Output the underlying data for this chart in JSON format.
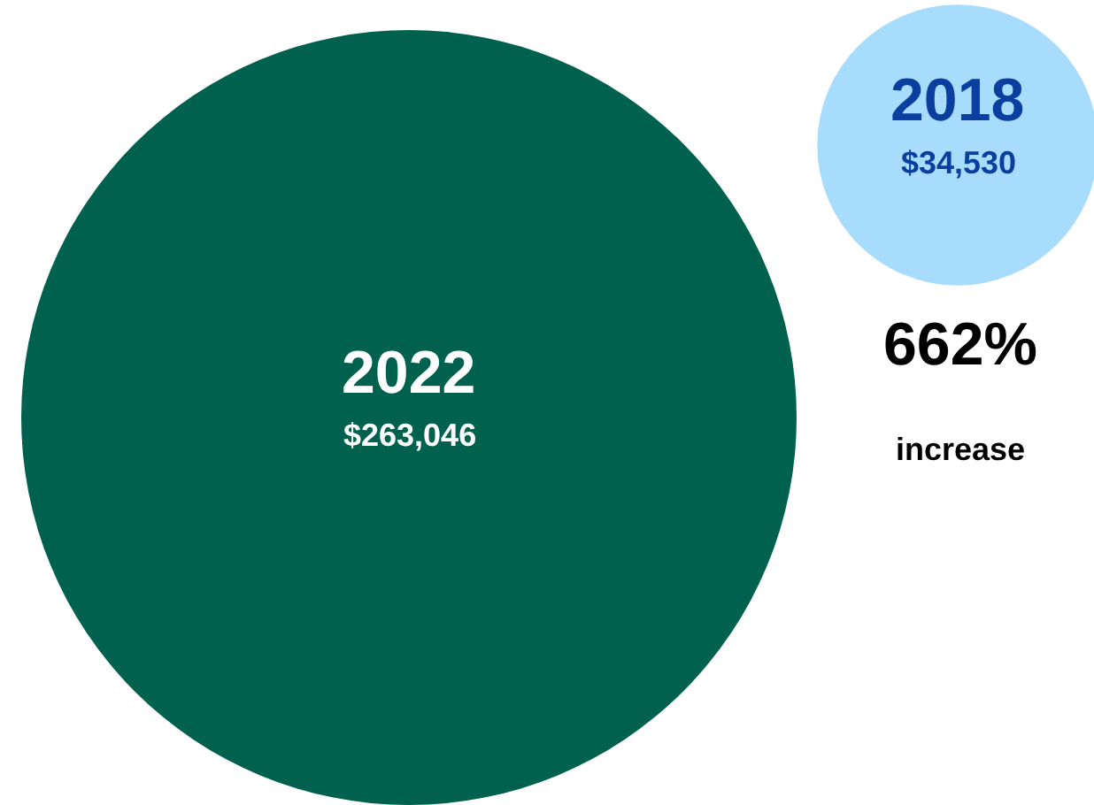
{
  "chart_data": {
    "type": "other",
    "categories": [
      "2022",
      "2018"
    ],
    "values": [
      263046,
      34530
    ],
    "value_labels": [
      "$263,046",
      "$34,530"
    ],
    "colors": [
      "#00614f",
      "#a8dcfd"
    ],
    "annotations": [
      "662%",
      "increase"
    ]
  }
}
